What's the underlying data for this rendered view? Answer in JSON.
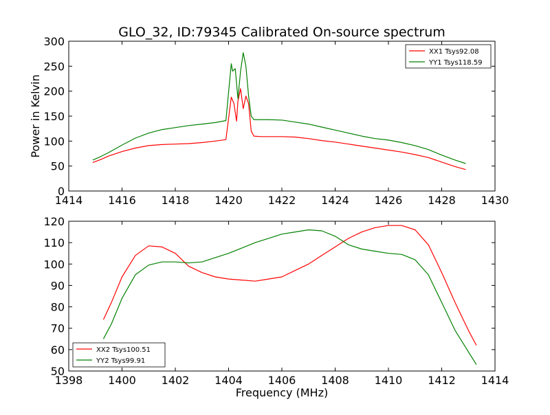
{
  "figure": {
    "title": "GLO_32, ID:79345 Calibrated On-source spectrum"
  },
  "chart_data": [
    {
      "type": "line",
      "title": "GLO_32, ID:79345 Calibrated On-source spectrum",
      "xlabel": "",
      "ylabel": "Power in Kelvin",
      "xlim": [
        1414,
        1430
      ],
      "ylim": [
        0,
        300
      ],
      "xticks": [
        "1414",
        "1416",
        "1418",
        "1420",
        "1422",
        "1424",
        "1426",
        "1428",
        "1430"
      ],
      "yticks": [
        "0",
        "50",
        "100",
        "150",
        "200",
        "250",
        "300"
      ],
      "legend_position": "top-right",
      "grid": false,
      "series": [
        {
          "name": "XX1 Tsys92.08",
          "color": "#ff0000",
          "x": [
            1414.9,
            1415.2,
            1415.5,
            1416.0,
            1416.5,
            1417.0,
            1417.5,
            1418.0,
            1418.5,
            1419.0,
            1419.5,
            1419.9,
            1420.1,
            1420.2,
            1420.3,
            1420.35,
            1420.45,
            1420.55,
            1420.65,
            1420.75,
            1420.85,
            1420.95,
            1421.2,
            1421.5,
            1422.0,
            1422.5,
            1423.0,
            1423.5,
            1424.0,
            1424.5,
            1425.0,
            1425.5,
            1426.0,
            1426.5,
            1427.0,
            1427.5,
            1428.0,
            1428.5,
            1428.9
          ],
          "y": [
            57,
            63,
            70,
            79,
            86,
            91,
            93,
            94,
            95,
            97,
            100,
            103,
            188,
            175,
            140,
            180,
            205,
            165,
            190,
            175,
            120,
            110,
            109,
            109,
            109,
            108,
            105,
            101,
            98,
            94,
            90,
            86,
            82,
            78,
            73,
            67,
            58,
            49,
            43
          ]
        },
        {
          "name": "YY1 Tsys118.59",
          "color": "#008000",
          "x": [
            1414.9,
            1415.2,
            1415.5,
            1416.0,
            1416.5,
            1417.0,
            1417.5,
            1418.0,
            1418.5,
            1419.0,
            1419.5,
            1419.9,
            1420.1,
            1420.15,
            1420.25,
            1420.35,
            1420.45,
            1420.55,
            1420.65,
            1420.75,
            1420.85,
            1420.95,
            1421.2,
            1421.5,
            1422.0,
            1422.5,
            1423.0,
            1423.5,
            1424.0,
            1424.5,
            1425.0,
            1425.5,
            1426.0,
            1426.5,
            1427.0,
            1427.5,
            1428.0,
            1428.5,
            1428.9
          ],
          "y": [
            62,
            69,
            77,
            92,
            106,
            116,
            123,
            127,
            131,
            134,
            137,
            141,
            255,
            240,
            245,
            185,
            240,
            277,
            250,
            190,
            150,
            143,
            143,
            143,
            142,
            138,
            134,
            128,
            122,
            116,
            110,
            105,
            102,
            97,
            91,
            83,
            72,
            62,
            55
          ]
        }
      ]
    },
    {
      "type": "line",
      "title": "",
      "xlabel": "Frequency (MHz)",
      "ylabel": "",
      "xlim": [
        1398,
        1414
      ],
      "ylim": [
        50,
        120
      ],
      "xticks": [
        "1398",
        "1400",
        "1402",
        "1404",
        "1406",
        "1408",
        "1410",
        "1412",
        "1414"
      ],
      "yticks": [
        "50",
        "60",
        "70",
        "80",
        "90",
        "100",
        "110",
        "120"
      ],
      "legend_position": "bottom-left",
      "grid": false,
      "series": [
        {
          "name": "XX2 Tsys100.51",
          "color": "#ff0000",
          "x": [
            1399.3,
            1399.6,
            1400.0,
            1400.5,
            1401.0,
            1401.5,
            1402.0,
            1402.5,
            1403.0,
            1403.5,
            1404.0,
            1404.5,
            1405.0,
            1405.5,
            1406.0,
            1406.5,
            1407.0,
            1407.5,
            1408.0,
            1408.5,
            1409.0,
            1409.5,
            1410.0,
            1410.5,
            1411.0,
            1411.5,
            1412.0,
            1412.5,
            1413.0,
            1413.3
          ],
          "y": [
            74,
            82,
            94,
            104,
            108.5,
            108,
            105,
            99,
            96,
            94,
            93,
            92.5,
            92,
            93,
            94,
            97,
            100,
            104,
            108,
            112,
            115,
            117,
            118,
            118,
            116,
            109,
            96,
            82,
            69,
            62
          ]
        },
        {
          "name": "YY2 Tsys99.91",
          "color": "#008000",
          "x": [
            1399.3,
            1399.6,
            1400.0,
            1400.5,
            1401.0,
            1401.5,
            1402.0,
            1402.5,
            1403.0,
            1403.5,
            1404.0,
            1404.5,
            1405.0,
            1405.5,
            1406.0,
            1406.5,
            1407.0,
            1407.5,
            1408.0,
            1408.5,
            1409.0,
            1409.5,
            1410.0,
            1410.5,
            1411.0,
            1411.5,
            1412.0,
            1412.5,
            1413.0,
            1413.3
          ],
          "y": [
            65,
            72,
            84,
            95,
            99.5,
            101,
            101,
            100.5,
            101,
            103,
            105,
            107.5,
            110,
            112,
            114,
            115,
            116,
            115.5,
            113,
            109,
            107,
            106,
            105,
            104.5,
            102,
            95,
            82,
            69,
            59,
            53
          ]
        }
      ]
    }
  ]
}
